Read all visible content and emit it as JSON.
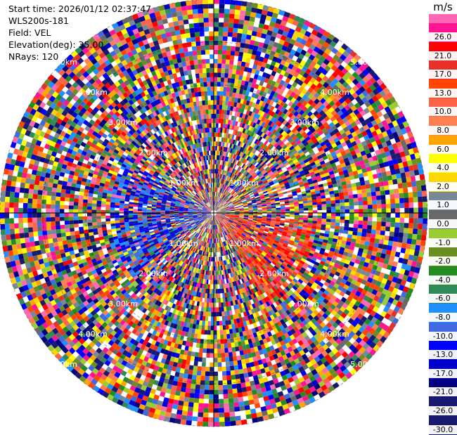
{
  "info": {
    "start_time": "Start time: 2026/01/12 02:37:47",
    "instrument": "WLS200s-181",
    "field": "Field: VEL",
    "elevation": "Elevation(deg): 35.00",
    "nrays": "NRays: 120"
  },
  "colorbar": {
    "unit": "m/s",
    "levels": [
      {
        "label": "26.0",
        "color": "#ff1493"
      },
      {
        "label": "21.0",
        "color": "#ff0000"
      },
      {
        "label": "17.0",
        "color": "#e8302a"
      },
      {
        "label": "13.0",
        "color": "#ff4500"
      },
      {
        "label": "10.0",
        "color": "#ff6347"
      },
      {
        "label": "8.0",
        "color": "#ff7f50"
      },
      {
        "label": "6.0",
        "color": "#ffa500"
      },
      {
        "label": "4.0",
        "color": "#ffff00"
      },
      {
        "label": "2.0",
        "color": "#ffd700"
      },
      {
        "label": "1.0",
        "color": "#778899"
      },
      {
        "label": "0.0",
        "color": "#696969"
      },
      {
        "label": "-1.0",
        "color": "#9acd32"
      },
      {
        "label": "-2.0",
        "color": "#6b8e23"
      },
      {
        "label": "-4.0",
        "color": "#228b22"
      },
      {
        "label": "-6.0",
        "color": "#2e8b57"
      },
      {
        "label": "-8.0",
        "color": "#1e90ff"
      },
      {
        "label": "-10.0",
        "color": "#4169e1"
      },
      {
        "label": "-13.0",
        "color": "#0000ff"
      },
      {
        "label": "-17.0",
        "color": "#0000cd"
      },
      {
        "label": "-21.0",
        "color": "#000080"
      },
      {
        "label": "-26.0",
        "color": "#191970"
      },
      {
        "label": "-30.0",
        "color": "#191970"
      }
    ],
    "top_color": "#ff69b4"
  },
  "chart_data": {
    "type": "heatmap",
    "projection": "polar-ppi",
    "nrays": 120,
    "range_ring_labels": [
      "1.00km",
      "2.00km",
      "3.00km",
      "4.00km",
      "5.00km"
    ],
    "range_rings_km": [
      1,
      2,
      3,
      4,
      5
    ],
    "max_range_km": 5.0,
    "label_bearings_deg": [
      45,
      135,
      225,
      315
    ],
    "grid": true,
    "notes_field_values_pattern": "mostly mixed/noisy velocities; weak blue (negative) region to the west and red (positive) region to the east-southeast near center"
  }
}
